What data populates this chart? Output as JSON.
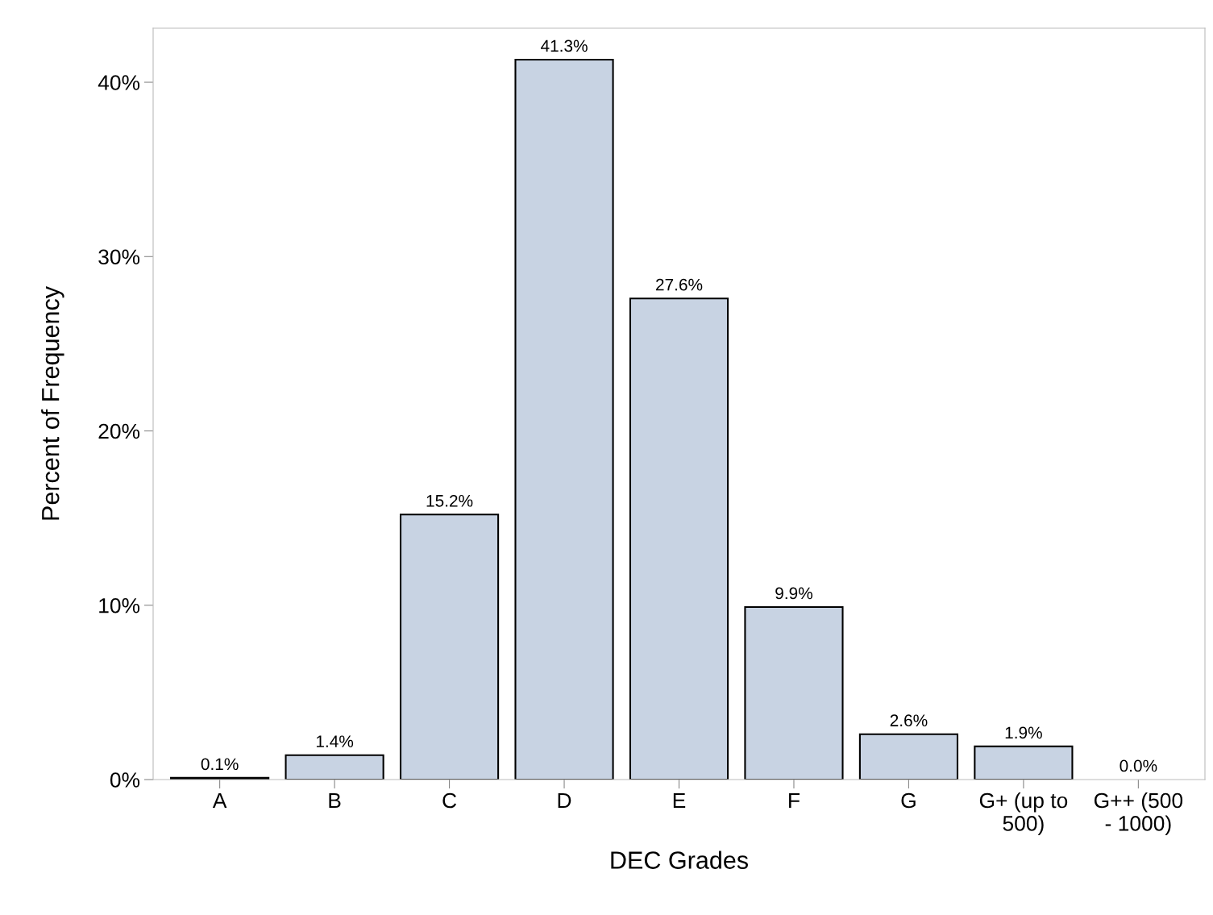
{
  "chart_data": {
    "type": "bar",
    "xlabel": "DEC Grades",
    "ylabel": "Percent of Frequency",
    "categories": [
      "A",
      "B",
      "C",
      "D",
      "E",
      "F",
      "G",
      "G+ (up to\n500)",
      "G++ (500\n- 1000)"
    ],
    "values": [
      0.1,
      1.4,
      15.2,
      41.3,
      27.6,
      9.9,
      2.6,
      1.9,
      0.0
    ],
    "value_labels": [
      "0.1%",
      "1.4%",
      "15.2%",
      "41.3%",
      "27.6%",
      "9.9%",
      "2.6%",
      "1.9%",
      "0.0%"
    ],
    "color": "#c8d3e3",
    "ylim": [
      0,
      43.1
    ],
    "yticks": [
      {
        "value": 0,
        "label": "0%"
      },
      {
        "value": 10,
        "label": "10%"
      },
      {
        "value": 20,
        "label": "20%"
      },
      {
        "value": 30,
        "label": "30%"
      },
      {
        "value": 40,
        "label": "40%"
      }
    ],
    "grid": false
  }
}
